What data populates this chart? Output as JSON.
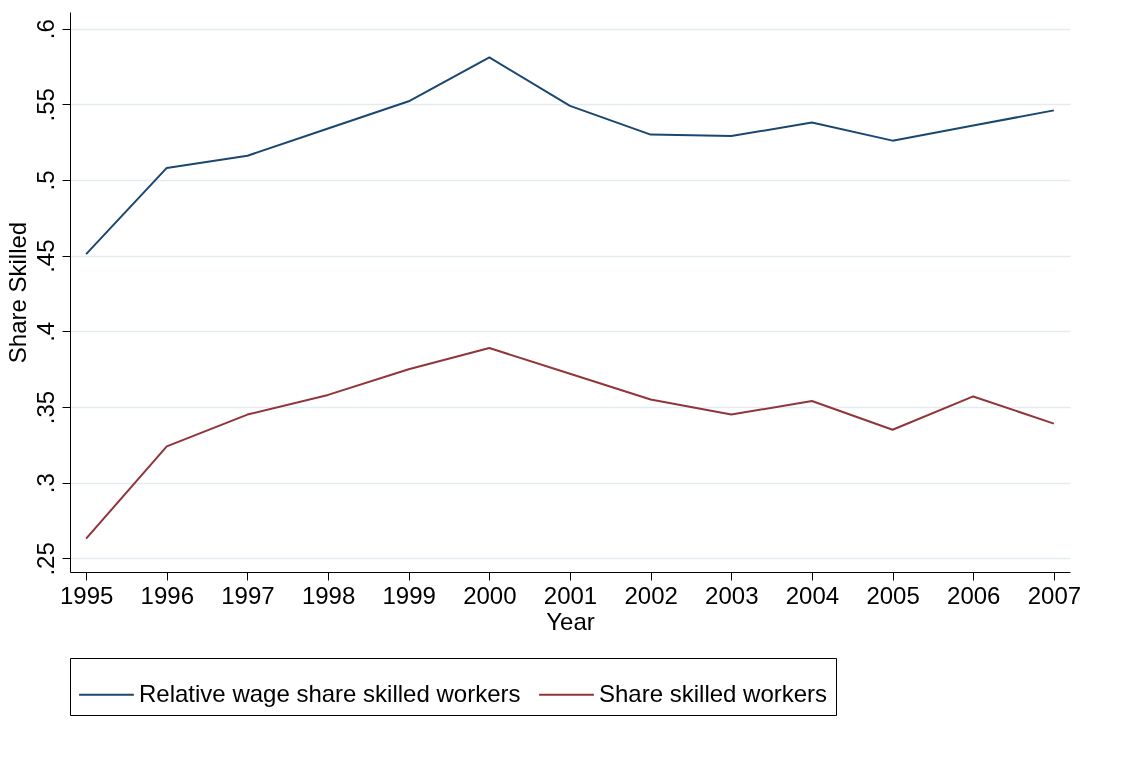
{
  "chart_data": {
    "type": "line",
    "xlabel": "Year",
    "ylabel": "Share Skilled",
    "x": [
      1995,
      1996,
      1997,
      1998,
      1999,
      2000,
      2001,
      2002,
      2003,
      2004,
      2005,
      2006,
      2007
    ],
    "series": [
      {
        "name": "Relative wage share skilled workers",
        "color": "#1a476f",
        "values": [
          0.451,
          0.508,
          0.516,
          0.534,
          0.552,
          0.581,
          0.549,
          0.53,
          0.529,
          0.538,
          0.526,
          0.536,
          0.546
        ]
      },
      {
        "name": "Share skilled workers",
        "color": "#90353b",
        "values": [
          0.263,
          0.324,
          0.345,
          0.358,
          0.375,
          0.389,
          0.372,
          0.355,
          0.345,
          0.354,
          0.335,
          0.357,
          0.339
        ]
      }
    ],
    "xlim": [
      1994.8,
      2007.2
    ],
    "xticks": [
      1995,
      1996,
      1997,
      1998,
      1999,
      2000,
      2001,
      2002,
      2003,
      2004,
      2005,
      2006,
      2007
    ],
    "ylim": [
      0.241,
      0.611
    ],
    "yticks": [
      {
        "value": 0.25,
        "label": ".25"
      },
      {
        "value": 0.3,
        "label": ".3"
      },
      {
        "value": 0.35,
        "label": ".35"
      },
      {
        "value": 0.4,
        "label": ".4"
      },
      {
        "value": 0.45,
        "label": ".45"
      },
      {
        "value": 0.5,
        "label": ".5"
      },
      {
        "value": 0.55,
        "label": ".55"
      },
      {
        "value": 0.6,
        "label": ".6"
      }
    ],
    "grid": "y",
    "legend": "bottom",
    "marker": "none",
    "line_style": "solid"
  }
}
